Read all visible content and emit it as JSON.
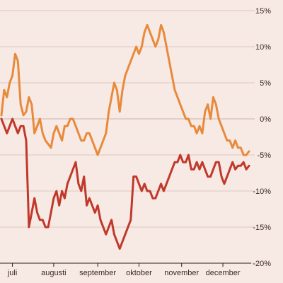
{
  "chart_data": {
    "type": "line",
    "title": "",
    "xlabel": "",
    "ylabel": "",
    "ylim": [
      -20,
      15
    ],
    "yticks": [
      15,
      10,
      5,
      0,
      -5,
      -10,
      -15,
      -20
    ],
    "ytick_labels": [
      "15%",
      "10%",
      "5%",
      "0%",
      "-5%",
      "-10%",
      "-15%",
      "-20%"
    ],
    "xlim": [
      0,
      180
    ],
    "month_ticks": [
      {
        "label": "juli",
        "x": 8
      },
      {
        "label": "augusti",
        "x": 38
      },
      {
        "label": "september",
        "x": 70
      },
      {
        "label": "oktober",
        "x": 100
      },
      {
        "label": "november",
        "x": 131
      },
      {
        "label": "december",
        "x": 161
      }
    ],
    "grid": true,
    "legend": "none",
    "series": [
      {
        "color": "#e88a3c",
        "x": [
          0,
          2,
          4,
          6,
          8,
          10,
          12,
          14,
          16,
          18,
          20,
          22,
          24,
          26,
          28,
          30,
          32,
          34,
          36,
          38,
          40,
          42,
          44,
          46,
          48,
          50,
          52,
          54,
          56,
          58,
          60,
          62,
          64,
          66,
          68,
          70,
          72,
          74,
          76,
          78,
          80,
          82,
          84,
          86,
          88,
          90,
          92,
          94,
          96,
          98,
          100,
          102,
          104,
          106,
          108,
          110,
          112,
          114,
          116,
          118,
          120,
          122,
          124,
          126,
          128,
          130,
          132,
          134,
          136,
          138,
          140,
          142,
          144,
          146,
          148,
          150,
          152,
          154,
          156,
          158,
          160,
          162,
          164,
          166,
          168,
          170,
          172,
          174,
          176,
          178,
          180
        ],
        "y": [
          0.5,
          4,
          3,
          5,
          6,
          9,
          8,
          2,
          0.5,
          1,
          3,
          2,
          -2,
          -1,
          0,
          -2,
          -3,
          -3.5,
          -4,
          -2,
          -1,
          -2,
          -3,
          -1,
          -1,
          0,
          0,
          -1,
          -2,
          -3,
          -3,
          -2,
          -2,
          -3,
          -4,
          -5,
          -4,
          -3,
          -2,
          1,
          3,
          5,
          4,
          1,
          4,
          6,
          7,
          8,
          9,
          10,
          9,
          10,
          12,
          13,
          12,
          11,
          10,
          11,
          13,
          12,
          10,
          8,
          6,
          4,
          3,
          2,
          1,
          0,
          0,
          -1,
          -1,
          -2,
          -1,
          -2,
          1,
          2,
          0,
          3,
          2,
          0,
          -1,
          -2,
          -3,
          -3,
          -4,
          -3,
          -4,
          -4,
          -5,
          -5,
          -4.5
        ]
      },
      {
        "color": "#c0392b",
        "x": [
          0,
          2,
          4,
          6,
          8,
          10,
          12,
          14,
          16,
          18,
          20,
          22,
          24,
          26,
          28,
          30,
          32,
          34,
          36,
          38,
          40,
          42,
          44,
          46,
          48,
          50,
          52,
          54,
          56,
          58,
          60,
          62,
          64,
          66,
          68,
          70,
          72,
          74,
          76,
          78,
          80,
          82,
          84,
          86,
          88,
          90,
          92,
          94,
          96,
          98,
          100,
          102,
          104,
          106,
          108,
          110,
          112,
          114,
          116,
          118,
          120,
          122,
          124,
          126,
          128,
          130,
          132,
          134,
          136,
          138,
          140,
          142,
          144,
          146,
          148,
          150,
          152,
          154,
          156,
          158,
          160,
          162,
          164,
          166,
          168,
          170,
          172,
          174,
          176,
          178,
          180
        ],
        "y": [
          0,
          -1,
          -2,
          -1,
          0,
          -1,
          -2,
          -1,
          -1,
          -3,
          -15,
          -13,
          -11,
          -13,
          -14,
          -14,
          -15,
          -15,
          -13,
          -11,
          -10,
          -12,
          -10,
          -11,
          -9,
          -8,
          -7,
          -6,
          -9,
          -10,
          -8,
          -12,
          -11,
          -12,
          -13,
          -12,
          -14,
          -15,
          -16,
          -15,
          -14,
          -16,
          -17,
          -18,
          -17,
          -16,
          -15,
          -14,
          -8,
          -8,
          -9,
          -10,
          -9,
          -10,
          -10,
          -11,
          -11,
          -10,
          -9,
          -10,
          -9,
          -8,
          -7,
          -6,
          -6,
          -5,
          -6,
          -6,
          -5,
          -7,
          -7,
          -6,
          -7,
          -6,
          -7,
          -8,
          -8,
          -7,
          -6,
          -6,
          -8,
          -9,
          -8,
          -7,
          -6,
          -7,
          -6.5,
          -6.5,
          -6,
          -7,
          -6.5
        ]
      }
    ]
  }
}
